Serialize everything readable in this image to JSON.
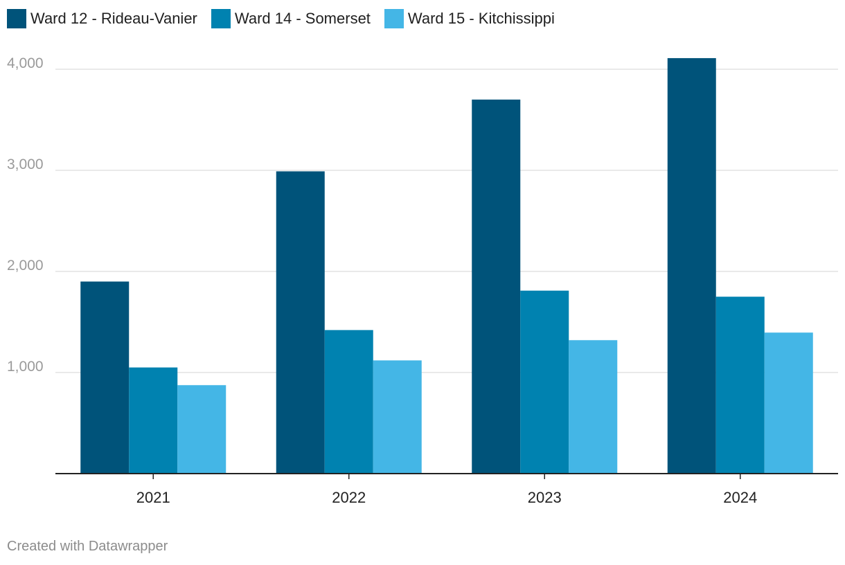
{
  "chart_data": {
    "type": "bar",
    "title": "",
    "xlabel": "",
    "ylabel": "",
    "categories": [
      "2021",
      "2022",
      "2023",
      "2024"
    ],
    "series": [
      {
        "name": "Ward 12 - Rideau-Vanier",
        "color": "#00537a",
        "values": [
          1900,
          2990,
          3700,
          4110
        ]
      },
      {
        "name": "Ward 14 - Somerset",
        "color": "#0082b0",
        "values": [
          1050,
          1420,
          1810,
          1750
        ]
      },
      {
        "name": "Ward 15 - Kitchissippi",
        "color": "#44b6e6",
        "values": [
          875,
          1120,
          1320,
          1395
        ]
      }
    ],
    "ylim": [
      0,
      4000
    ],
    "yticks": [
      1000,
      2000,
      3000,
      4000
    ],
    "ytick_labels": [
      "1,000",
      "2,000",
      "3,000",
      "4,000"
    ],
    "grid": true,
    "legend_position": "top-left"
  },
  "footer": {
    "credit": "Created with Datawrapper"
  }
}
